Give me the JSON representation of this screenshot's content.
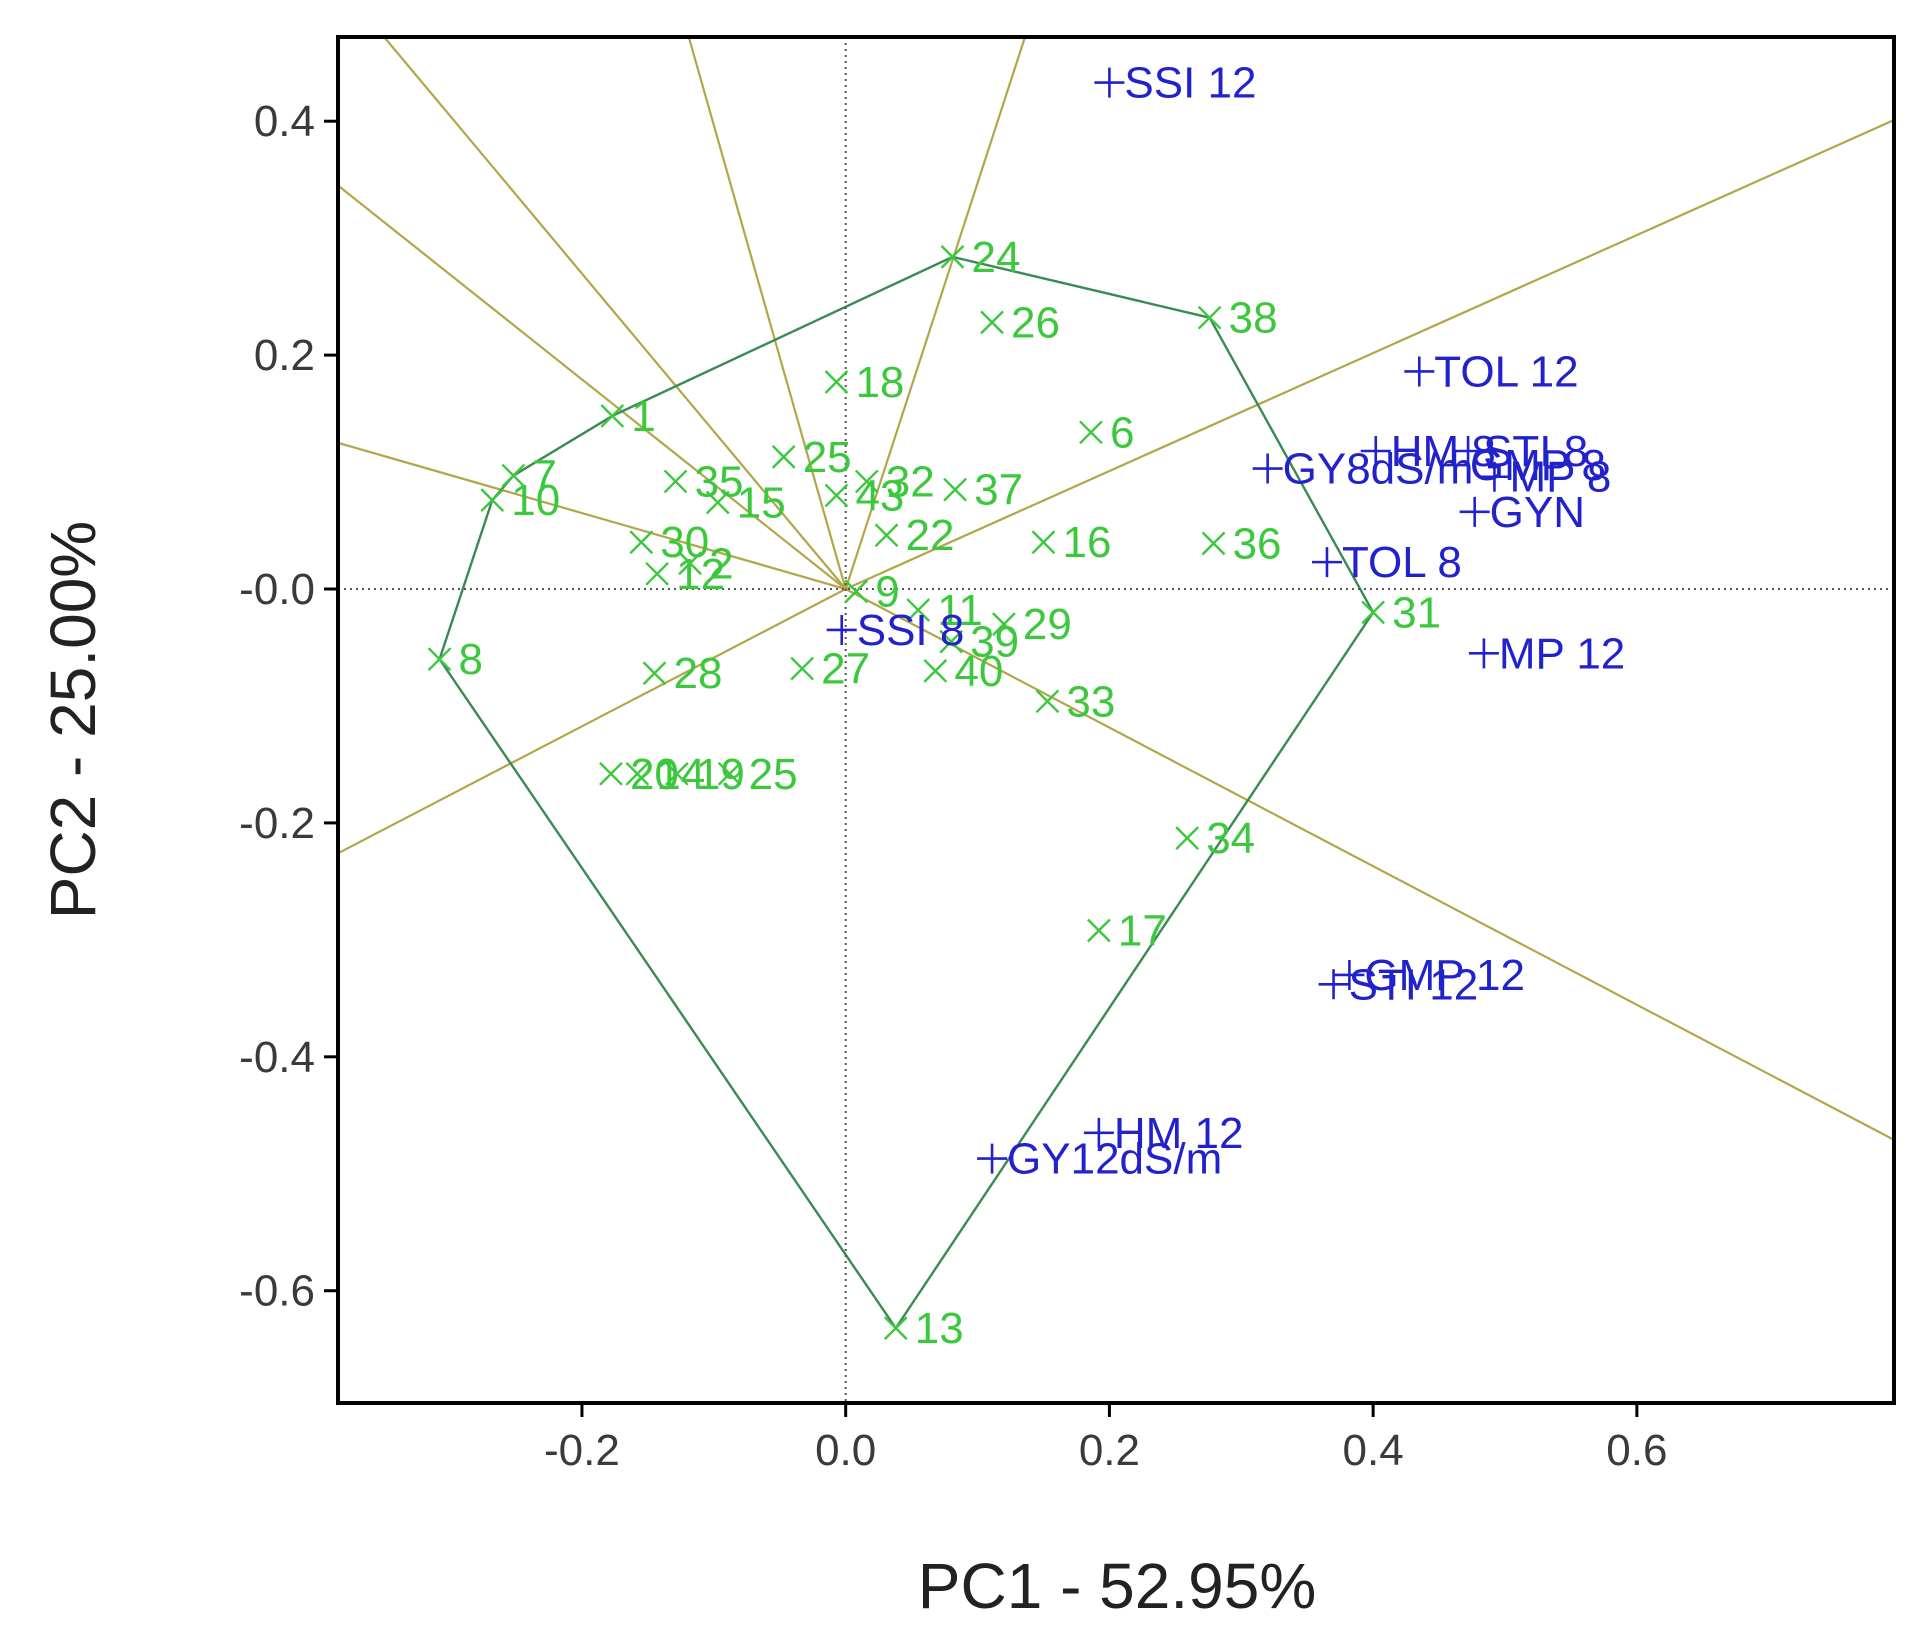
{
  "chart_data": {
    "type": "scatter",
    "subtype": "GGE biplot (which-won-where polygon)",
    "xlabel": "PC1 - 52.95%",
    "ylabel": "PC2 - 25.00%",
    "xlim": [
      -0.385,
      0.795
    ],
    "ylim": [
      -0.696,
      0.472
    ],
    "xticks": [
      -0.2,
      0.0,
      0.2,
      0.4,
      0.6
    ],
    "xtick_labels": [
      "-0.2",
      "0.0",
      "0.2",
      "0.4",
      "0.6"
    ],
    "yticks": [
      0.4,
      0.2,
      0.0,
      -0.2,
      -0.4,
      -0.6
    ],
    "ytick_labels": [
      "0.4",
      "0.2",
      "-0.0",
      "-0.2",
      "-0.4",
      "-0.6"
    ],
    "reference_lines": {
      "x": 0,
      "y": 0,
      "style": "dotted"
    },
    "colors": {
      "genotypes": "#3cc83c",
      "traits": "#2222cc",
      "polygon": "#3a8a55",
      "sector_lines": "#b3a64a",
      "frame": "#000000",
      "reference": "#555555"
    },
    "series": [
      {
        "name": "genotypes",
        "marker": "x",
        "points": [
          {
            "label": "24",
            "x": 0.081,
            "y": 0.284
          },
          {
            "label": "26",
            "x": 0.111,
            "y": 0.228
          },
          {
            "label": "38",
            "x": 0.276,
            "y": 0.232
          },
          {
            "label": "18",
            "x": -0.007,
            "y": 0.177
          },
          {
            "label": "1",
            "x": -0.177,
            "y": 0.148
          },
          {
            "label": "6",
            "x": 0.186,
            "y": 0.134
          },
          {
            "label": "25",
            "x": -0.047,
            "y": 0.113
          },
          {
            "label": "7",
            "x": -0.252,
            "y": 0.097
          },
          {
            "label": "35",
            "x": -0.129,
            "y": 0.092
          },
          {
            "label": "32",
            "x": 0.016,
            "y": 0.092
          },
          {
            "label": "37",
            "x": 0.083,
            "y": 0.085
          },
          {
            "label": "43",
            "x": -0.007,
            "y": 0.08
          },
          {
            "label": "15",
            "x": -0.097,
            "y": 0.074
          },
          {
            "label": "10",
            "x": -0.268,
            "y": 0.076
          },
          {
            "label": "22",
            "x": 0.031,
            "y": 0.046
          },
          {
            "label": "16",
            "x": 0.15,
            "y": 0.04
          },
          {
            "label": "36",
            "x": 0.279,
            "y": 0.039
          },
          {
            "label": "30",
            "x": -0.155,
            "y": 0.04
          },
          {
            "label": "2",
            "x": -0.118,
            "y": 0.022
          },
          {
            "label": "12",
            "x": -0.143,
            "y": 0.013
          },
          {
            "label": "9",
            "x": 0.008,
            "y": -0.002
          },
          {
            "label": "31",
            "x": 0.4,
            "y": -0.02
          },
          {
            "label": "11",
            "x": 0.055,
            "y": -0.018
          },
          {
            "label": "29",
            "x": 0.12,
            "y": -0.03
          },
          {
            "label": "39",
            "x": 0.08,
            "y": -0.045
          },
          {
            "label": "8",
            "x": -0.308,
            "y": -0.06
          },
          {
            "label": "27",
            "x": -0.033,
            "y": -0.068
          },
          {
            "label": "40",
            "x": 0.068,
            "y": -0.07
          },
          {
            "label": "28",
            "x": -0.145,
            "y": -0.072
          },
          {
            "label": "33",
            "x": 0.153,
            "y": -0.096
          },
          {
            "label": "20",
            "x": -0.178,
            "y": -0.158
          },
          {
            "label": "14",
            "x": -0.158,
            "y": -0.158
          },
          {
            "label": "19",
            "x": -0.128,
            "y": -0.158
          },
          {
            "label": "25",
            "x": -0.088,
            "y": -0.158
          },
          {
            "label": "34",
            "x": 0.259,
            "y": -0.213
          },
          {
            "label": "17",
            "x": 0.192,
            "y": -0.292
          },
          {
            "label": "13",
            "x": 0.038,
            "y": -0.632
          }
        ]
      },
      {
        "name": "traits",
        "marker": "+",
        "points": [
          {
            "label": "SSI 12",
            "x": 0.2,
            "y": 0.433
          },
          {
            "label": "TOL 12",
            "x": 0.435,
            "y": 0.186
          },
          {
            "label": "HM 8",
            "x": 0.402,
            "y": 0.118
          },
          {
            "label": "STI 8",
            "x": 0.472,
            "y": 0.118
          },
          {
            "label": "GMP 8",
            "x": 0.462,
            "y": 0.106
          },
          {
            "label": "MP 8",
            "x": 0.492,
            "y": 0.096
          },
          {
            "label": "GY8dS/m",
            "x": 0.32,
            "y": 0.103
          },
          {
            "label": "GYN",
            "x": 0.477,
            "y": 0.066
          },
          {
            "label": "TOL 8",
            "x": 0.365,
            "y": 0.023
          },
          {
            "label": "SSI 8",
            "x": -0.003,
            "y": -0.035
          },
          {
            "label": "MP 12",
            "x": 0.484,
            "y": -0.055
          },
          {
            "label": "GMP 12",
            "x": 0.382,
            "y": -0.33
          },
          {
            "label": "STI 12",
            "x": 0.37,
            "y": -0.338
          },
          {
            "label": "HM 12",
            "x": 0.192,
            "y": -0.465
          },
          {
            "label": "GY12dS/m",
            "x": 0.111,
            "y": -0.487
          }
        ]
      }
    ],
    "polygon_vertices": [
      {
        "x": 0.081,
        "y": 0.284
      },
      {
        "x": 0.276,
        "y": 0.232
      },
      {
        "x": 0.4,
        "y": -0.02
      },
      {
        "x": 0.038,
        "y": -0.632
      },
      {
        "x": -0.308,
        "y": -0.06
      },
      {
        "x": -0.268,
        "y": 0.076
      },
      {
        "x": -0.252,
        "y": 0.097
      },
      {
        "x": -0.177,
        "y": 0.148
      }
    ],
    "sector_line_ends": [
      {
        "x": 0.136,
        "y": 0.472
      },
      {
        "x": -0.119,
        "y": 0.472
      },
      {
        "x": -0.35,
        "y": 0.472
      },
      {
        "x": -0.385,
        "y": 0.345
      },
      {
        "x": -0.385,
        "y": 0.125
      },
      {
        "x": 0.795,
        "y": 0.401
      },
      {
        "x": -0.385,
        "y": -0.226
      },
      {
        "x": 0.795,
        "y": -0.471
      }
    ]
  }
}
